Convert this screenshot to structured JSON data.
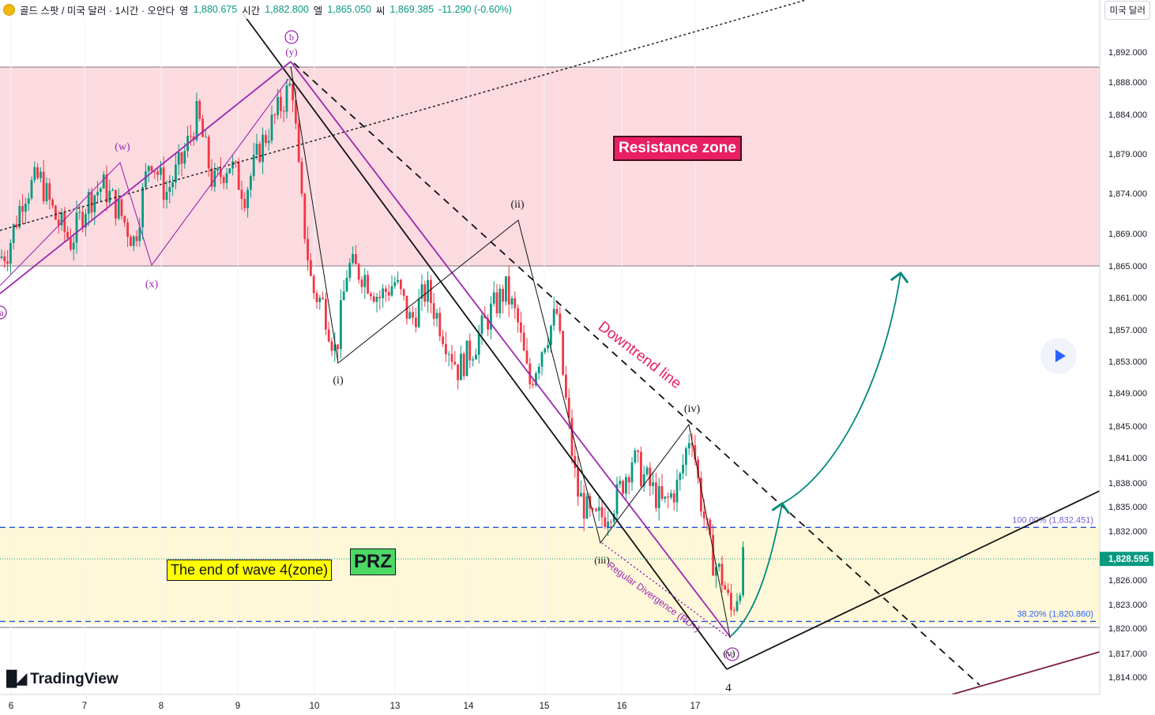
{
  "header": {
    "symbol": "골드 스팟 / 미국 달러 · 1시간 · 오안다",
    "open_label": "영",
    "open_value": "1,880.675",
    "high_label": "시간",
    "high_value": "1,882.800",
    "low_label": "엘",
    "low_value": "1,865.050",
    "close_label": "씨",
    "close_value": "1,869.385",
    "change": "-11.290 (-0.60%)"
  },
  "currency_button": "미국 달러",
  "logo_text": "TradingView",
  "colors": {
    "resistance_zone": "#fcdbe0",
    "support_zone": "#fff8d8",
    "up_candle": "#089981",
    "down_candle": "#f23645",
    "purple": "#9c27b0",
    "teal": "#00897b",
    "dashed_blue": "#1e50e6"
  },
  "chart_data": {
    "type": "candlestick",
    "symbol": "XAU/USD",
    "interval": "1h",
    "ylim": [
      1811,
      1895
    ],
    "y_ticks": [
      "1,892.000",
      "1,888.000",
      "1,884.000",
      "1,879.000",
      "1,874.000",
      "1,869.000",
      "1,865.000",
      "1,861.000",
      "1,857.000",
      "1,853.000",
      "1,849.000",
      "1,845.000",
      "1,841.000",
      "1,838.000",
      "1,835.000",
      "1,832.000",
      "1,826.000",
      "1,823.000",
      "1,820.000",
      "1,817.000",
      "1,814.000"
    ],
    "x_ticks": [
      "6",
      "7",
      "8",
      "9",
      "10",
      "13",
      "14",
      "15",
      "16",
      "17"
    ],
    "last_price": "1,828.595",
    "zones": [
      {
        "name": "Resistance zone",
        "from": 1865,
        "to": 1890
      },
      {
        "name": "The end of wave 4(zone)",
        "from": 1820.5,
        "to": 1832.5
      }
    ],
    "fib_levels": [
      {
        "label": "100.00% (1,832.451)",
        "value": 1832.451
      },
      {
        "label": "38.20% (1,820.860)",
        "value": 1820.86
      }
    ],
    "annotations": {
      "resistance": "Resistance zone",
      "downtrend": "Downtrend line",
      "wave4": "The end of wave 4(zone)",
      "prz": "PRZ",
      "divergence": "Regular Divergence (RD+)",
      "wave_number": "4",
      "waves": [
        "(w)",
        "(x)",
        "(y)",
        "b",
        "(i)",
        "(ii)",
        "(iii)",
        "(iv)",
        "(v)",
        "c",
        "a"
      ]
    },
    "candle_path": [
      [
        0,
        1866
      ],
      [
        10,
        1867
      ],
      [
        30,
        1874
      ],
      [
        50,
        1876
      ],
      [
        70,
        1871
      ],
      [
        90,
        1868
      ],
      [
        110,
        1873
      ],
      [
        130,
        1875
      ],
      [
        150,
        1872
      ],
      [
        170,
        1868
      ],
      [
        190,
        1879
      ],
      [
        210,
        1874
      ],
      [
        230,
        1878
      ],
      [
        250,
        1884
      ],
      [
        270,
        1875
      ],
      [
        290,
        1878
      ],
      [
        310,
        1874
      ],
      [
        330,
        1880
      ],
      [
        350,
        1884
      ],
      [
        370,
        1888
      ],
      [
        380,
        1874
      ],
      [
        395,
        1862
      ],
      [
        410,
        1860
      ],
      [
        425,
        1854
      ],
      [
        440,
        1865
      ],
      [
        460,
        1864
      ],
      [
        480,
        1861
      ],
      [
        500,
        1863
      ],
      [
        520,
        1858
      ],
      [
        540,
        1862
      ],
      [
        560,
        1857
      ],
      [
        580,
        1852
      ],
      [
        600,
        1855
      ],
      [
        620,
        1859
      ],
      [
        640,
        1862
      ],
      [
        655,
        1858
      ],
      [
        670,
        1850
      ],
      [
        690,
        1856
      ],
      [
        705,
        1859
      ],
      [
        715,
        1849
      ],
      [
        730,
        1837
      ],
      [
        750,
        1833
      ],
      [
        765,
        1834
      ],
      [
        780,
        1836
      ],
      [
        800,
        1841
      ],
      [
        820,
        1838
      ],
      [
        840,
        1835
      ],
      [
        860,
        1838
      ],
      [
        875,
        1845
      ],
      [
        885,
        1837
      ],
      [
        900,
        1829
      ],
      [
        915,
        1826
      ],
      [
        925,
        1822
      ],
      [
        935,
        1825
      ],
      [
        942,
        1829
      ]
    ]
  }
}
